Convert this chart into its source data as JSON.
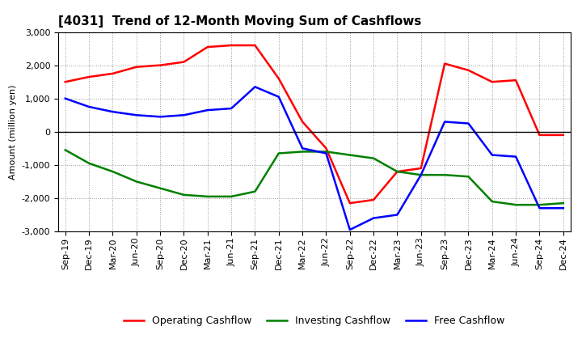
{
  "title": "[4031]  Trend of 12-Month Moving Sum of Cashflows",
  "ylabel": "Amount (million yen)",
  "x_labels": [
    "Sep-19",
    "Dec-19",
    "Mar-20",
    "Jun-20",
    "Sep-20",
    "Dec-20",
    "Mar-21",
    "Jun-21",
    "Sep-21",
    "Dec-21",
    "Mar-22",
    "Jun-22",
    "Sep-22",
    "Dec-22",
    "Mar-23",
    "Jun-23",
    "Sep-23",
    "Dec-23",
    "Mar-24",
    "Jun-24",
    "Sep-24",
    "Dec-24"
  ],
  "operating": [
    1500,
    1650,
    1750,
    1950,
    2000,
    2100,
    2550,
    2600,
    2600,
    1600,
    300,
    -500,
    -2150,
    -2050,
    -1200,
    -1100,
    2050,
    1850,
    1500,
    1550,
    -100,
    -100
  ],
  "investing": [
    -550,
    -950,
    -1200,
    -1500,
    -1700,
    -1900,
    -1950,
    -1950,
    -1800,
    -650,
    -600,
    -600,
    -700,
    -800,
    -1200,
    -1300,
    -1300,
    -1350,
    -2100,
    -2200,
    -2200,
    -2150
  ],
  "free": [
    1000,
    750,
    600,
    500,
    450,
    500,
    650,
    700,
    1350,
    1050,
    -500,
    -650,
    -2950,
    -2600,
    -2500,
    -1300,
    300,
    250,
    -700,
    -750,
    -2300,
    -2300
  ],
  "operating_color": "#ff0000",
  "investing_color": "#008000",
  "free_color": "#0000ff",
  "ylim": [
    -3000,
    3000
  ],
  "yticks": [
    -3000,
    -2000,
    -1000,
    0,
    1000,
    2000,
    3000
  ],
  "background_color": "#ffffff",
  "grid_color": "#999999",
  "title_fontsize": 11,
  "legend_fontsize": 9,
  "axis_fontsize": 8,
  "ylabel_fontsize": 8,
  "linewidth": 1.8
}
